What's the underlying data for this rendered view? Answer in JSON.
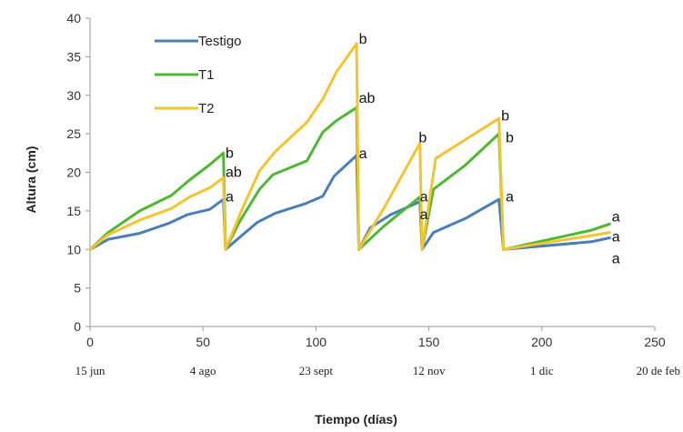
{
  "chart_data": {
    "type": "line",
    "ylabel": "Altura (cm)",
    "xlabel": "Tiempo (días)",
    "xlim": [
      0,
      250
    ],
    "ylim": [
      0,
      40
    ],
    "x_ticks": [
      "0",
      "50",
      "100",
      "150",
      "200",
      "250"
    ],
    "y_ticks": [
      "0",
      "5",
      "10",
      "15",
      "20",
      "25",
      "30",
      "35",
      "40"
    ],
    "date_labels": [
      {
        "x": 0,
        "label": "15  jun"
      },
      {
        "x": 50,
        "label": "4 ago"
      },
      {
        "x": 100,
        "label": "23 sept"
      },
      {
        "x": 150,
        "label": "12 nov"
      },
      {
        "x": 200,
        "label": "1 dic"
      },
      {
        "x": 250,
        "label": "20 de feb"
      }
    ],
    "grid": false,
    "legend_position": "top-left",
    "series": [
      {
        "name": "Testigo",
        "color": "#4a7ebb",
        "points": [
          [
            0,
            10
          ],
          [
            8,
            11.3
          ],
          [
            22,
            12.1
          ],
          [
            35,
            13.4
          ],
          [
            43,
            14.5
          ],
          [
            53,
            15.2
          ],
          [
            59,
            16.5
          ],
          [
            60,
            10
          ],
          [
            66,
            11.5
          ],
          [
            74,
            13.5
          ],
          [
            82,
            14.7
          ],
          [
            95,
            15.9
          ],
          [
            103,
            16.9
          ],
          [
            108,
            19.5
          ],
          [
            118,
            22.2
          ],
          [
            119,
            10
          ],
          [
            124,
            12.8
          ],
          [
            133,
            14.5
          ],
          [
            146,
            16.2
          ],
          [
            147,
            10
          ],
          [
            152,
            12.2
          ],
          [
            166,
            14
          ],
          [
            181,
            16.5
          ],
          [
            183,
            10
          ],
          [
            222,
            11
          ],
          [
            230,
            11.5
          ]
        ]
      },
      {
        "name": "T1",
        "color": "#4fb833",
        "points": [
          [
            0,
            10
          ],
          [
            8,
            12.2
          ],
          [
            22,
            15
          ],
          [
            36,
            17
          ],
          [
            44,
            19
          ],
          [
            53,
            21
          ],
          [
            59,
            22.5
          ],
          [
            60,
            10
          ],
          [
            66,
            13.5
          ],
          [
            75,
            17.8
          ],
          [
            81,
            19.7
          ],
          [
            96,
            21.5
          ],
          [
            103,
            25.2
          ],
          [
            109,
            26.7
          ],
          [
            118,
            28.4
          ],
          [
            119,
            10
          ],
          [
            130,
            13
          ],
          [
            146,
            16.8
          ],
          [
            147,
            10
          ],
          [
            152,
            17.8
          ],
          [
            166,
            20.9
          ],
          [
            181,
            25
          ],
          [
            183,
            10
          ],
          [
            222,
            12.5
          ],
          [
            230,
            13.3
          ]
        ]
      },
      {
        "name": "T2",
        "color": "#f4c430",
        "points": [
          [
            0,
            10
          ],
          [
            8,
            11.9
          ],
          [
            22,
            13.8
          ],
          [
            36,
            15.3
          ],
          [
            44,
            16.8
          ],
          [
            53,
            18
          ],
          [
            59,
            19.3
          ],
          [
            60,
            10
          ],
          [
            67,
            15
          ],
          [
            75,
            20.2
          ],
          [
            82,
            22.7
          ],
          [
            96,
            26.5
          ],
          [
            103,
            29.5
          ],
          [
            109,
            33
          ],
          [
            118,
            36.7
          ],
          [
            119,
            10
          ],
          [
            130,
            15.3
          ],
          [
            146,
            23.8
          ],
          [
            147,
            10
          ],
          [
            153,
            21.8
          ],
          [
            181,
            27
          ],
          [
            183,
            10
          ],
          [
            222,
            11.8
          ],
          [
            230,
            12.2
          ]
        ]
      }
    ],
    "annotations": [
      {
        "x": 60,
        "y": 22.5,
        "text": "b"
      },
      {
        "x": 60,
        "y": 20,
        "text": "ab"
      },
      {
        "x": 60,
        "y": 16.8,
        "text": "a"
      },
      {
        "x": 119,
        "y": 37.3,
        "text": "b"
      },
      {
        "x": 119,
        "y": 29.6,
        "text": "ab"
      },
      {
        "x": 119,
        "y": 22.4,
        "text": "a"
      },
      {
        "x": 145.5,
        "y": 24.5,
        "text": "b"
      },
      {
        "x": 146,
        "y": 16.8,
        "text": "a"
      },
      {
        "x": 146,
        "y": 14.5,
        "text": "a"
      },
      {
        "x": 182,
        "y": 27.3,
        "text": "b"
      },
      {
        "x": 184,
        "y": 24.5,
        "text": "b"
      },
      {
        "x": 184,
        "y": 16.8,
        "text": "a"
      },
      {
        "x": 231,
        "y": 14.2,
        "text": "a"
      },
      {
        "x": 231,
        "y": 11.6,
        "text": "a"
      },
      {
        "x": 231,
        "y": 8.8,
        "text": "a"
      }
    ]
  }
}
